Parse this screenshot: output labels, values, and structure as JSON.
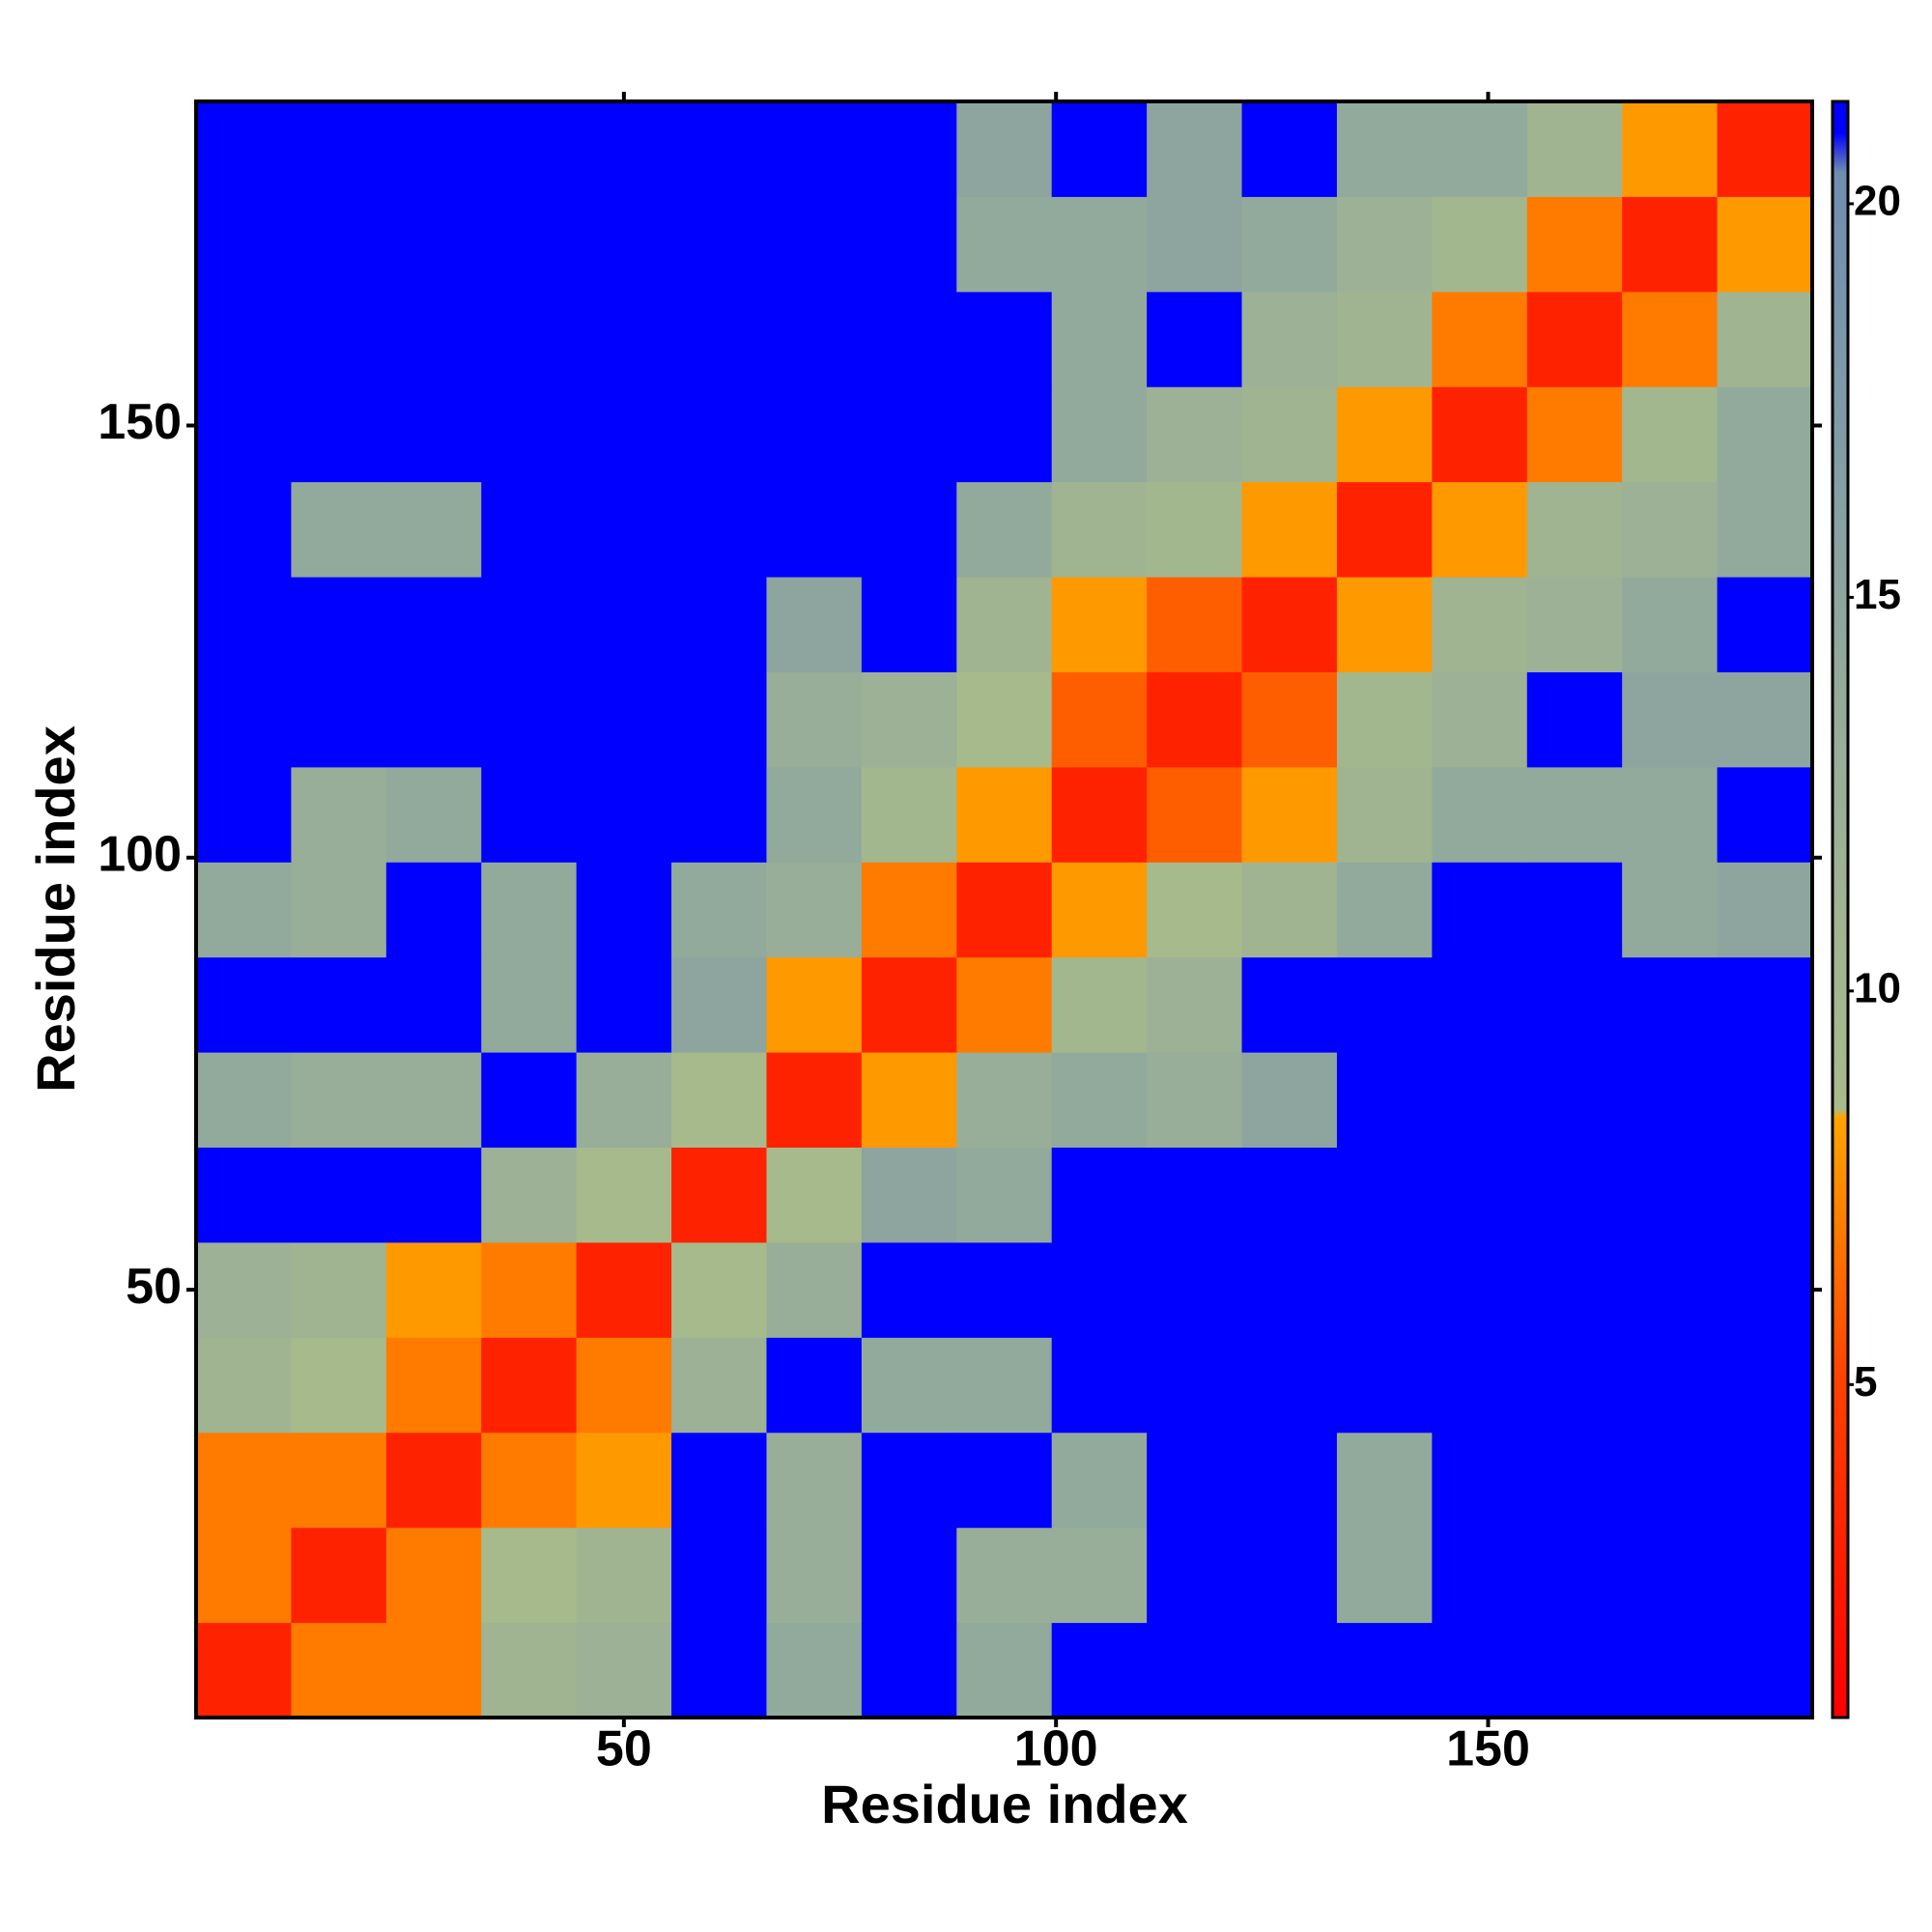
{
  "chart_data": {
    "type": "heatmap",
    "xlabel": "Residue index",
    "ylabel": "Residue index",
    "x": [
      6,
      17,
      28,
      39,
      50,
      61,
      72,
      83,
      94,
      105,
      116,
      127,
      138,
      149,
      160,
      171,
      182
    ],
    "y": [
      6,
      17,
      28,
      39,
      50,
      61,
      72,
      83,
      94,
      105,
      116,
      127,
      138,
      149,
      160,
      171,
      182
    ],
    "z": [
      [
        3,
        7,
        7,
        11,
        12,
        21,
        14,
        21,
        14,
        21,
        21,
        21,
        21,
        21,
        21,
        21,
        21
      ],
      [
        7,
        3,
        7,
        9,
        11,
        21,
        13,
        21,
        13,
        13,
        21,
        21,
        14,
        21,
        21,
        21,
        21
      ],
      [
        7,
        7,
        3,
        7,
        8,
        21,
        13,
        21,
        21,
        14,
        21,
        21,
        14,
        21,
        21,
        21,
        21
      ],
      [
        11,
        9,
        7,
        3,
        7,
        12,
        21,
        14,
        14,
        21,
        21,
        21,
        21,
        21,
        21,
        21,
        21
      ],
      [
        12,
        11,
        8,
        7,
        3,
        9,
        13,
        21,
        21,
        21,
        21,
        21,
        21,
        21,
        21,
        21,
        21
      ],
      [
        21,
        21,
        21,
        12,
        9,
        3,
        9,
        15,
        14,
        21,
        21,
        21,
        21,
        21,
        21,
        21,
        21
      ],
      [
        14,
        13,
        13,
        21,
        13,
        9,
        3,
        8,
        13,
        14,
        13,
        15,
        21,
        21,
        21,
        21,
        21
      ],
      [
        21,
        21,
        21,
        14,
        21,
        15,
        8,
        3,
        7,
        10,
        12,
        21,
        21,
        21,
        21,
        21,
        21
      ],
      [
        14,
        13,
        21,
        14,
        21,
        14,
        13,
        7,
        3,
        8,
        9,
        11,
        14,
        21,
        21,
        14,
        15
      ],
      [
        21,
        13,
        14,
        21,
        21,
        21,
        14,
        10,
        8,
        3,
        6,
        8,
        11,
        14,
        14,
        14,
        21
      ],
      [
        21,
        21,
        21,
        21,
        21,
        21,
        13,
        12,
        9,
        6,
        3,
        6,
        10,
        12,
        21,
        15,
        15
      ],
      [
        21,
        21,
        21,
        21,
        21,
        21,
        15,
        21,
        11,
        8,
        6,
        3,
        8,
        11,
        12,
        14,
        21
      ],
      [
        21,
        14,
        14,
        21,
        21,
        21,
        21,
        21,
        14,
        11,
        10,
        8,
        3,
        8,
        11,
        12,
        14
      ],
      [
        21,
        21,
        21,
        21,
        21,
        21,
        21,
        21,
        21,
        14,
        12,
        11,
        8,
        3,
        7,
        10,
        14
      ],
      [
        21,
        21,
        21,
        21,
        21,
        21,
        21,
        21,
        21,
        14,
        21,
        12,
        11,
        7,
        3,
        7,
        11
      ],
      [
        21,
        21,
        21,
        21,
        21,
        21,
        21,
        21,
        14,
        14,
        15,
        14,
        12,
        10,
        7,
        3,
        8
      ],
      [
        21,
        21,
        21,
        21,
        21,
        21,
        21,
        21,
        15,
        21,
        15,
        21,
        14,
        14,
        11,
        8,
        3
      ]
    ],
    "xlim": [
      0.5,
      187.5
    ],
    "ylim": [
      0.5,
      187.5
    ],
    "xticks": [
      50,
      100,
      150
    ],
    "yticks": [
      50,
      100,
      150
    ],
    "zlim": [
      0.77,
      21.3
    ],
    "zticks": [
      5,
      10,
      15,
      20
    ],
    "colorscale": [
      [
        0.77,
        "#ff0000"
      ],
      [
        5,
        "#ff4000"
      ],
      [
        8.4,
        "#ffa500"
      ],
      [
        8.5,
        "#a9bb8a"
      ],
      [
        13,
        "#98ae98"
      ],
      [
        20.4,
        "#6f8db0"
      ],
      [
        20.9,
        "#0000ff"
      ],
      [
        21.3,
        "#0000ff"
      ]
    ]
  }
}
